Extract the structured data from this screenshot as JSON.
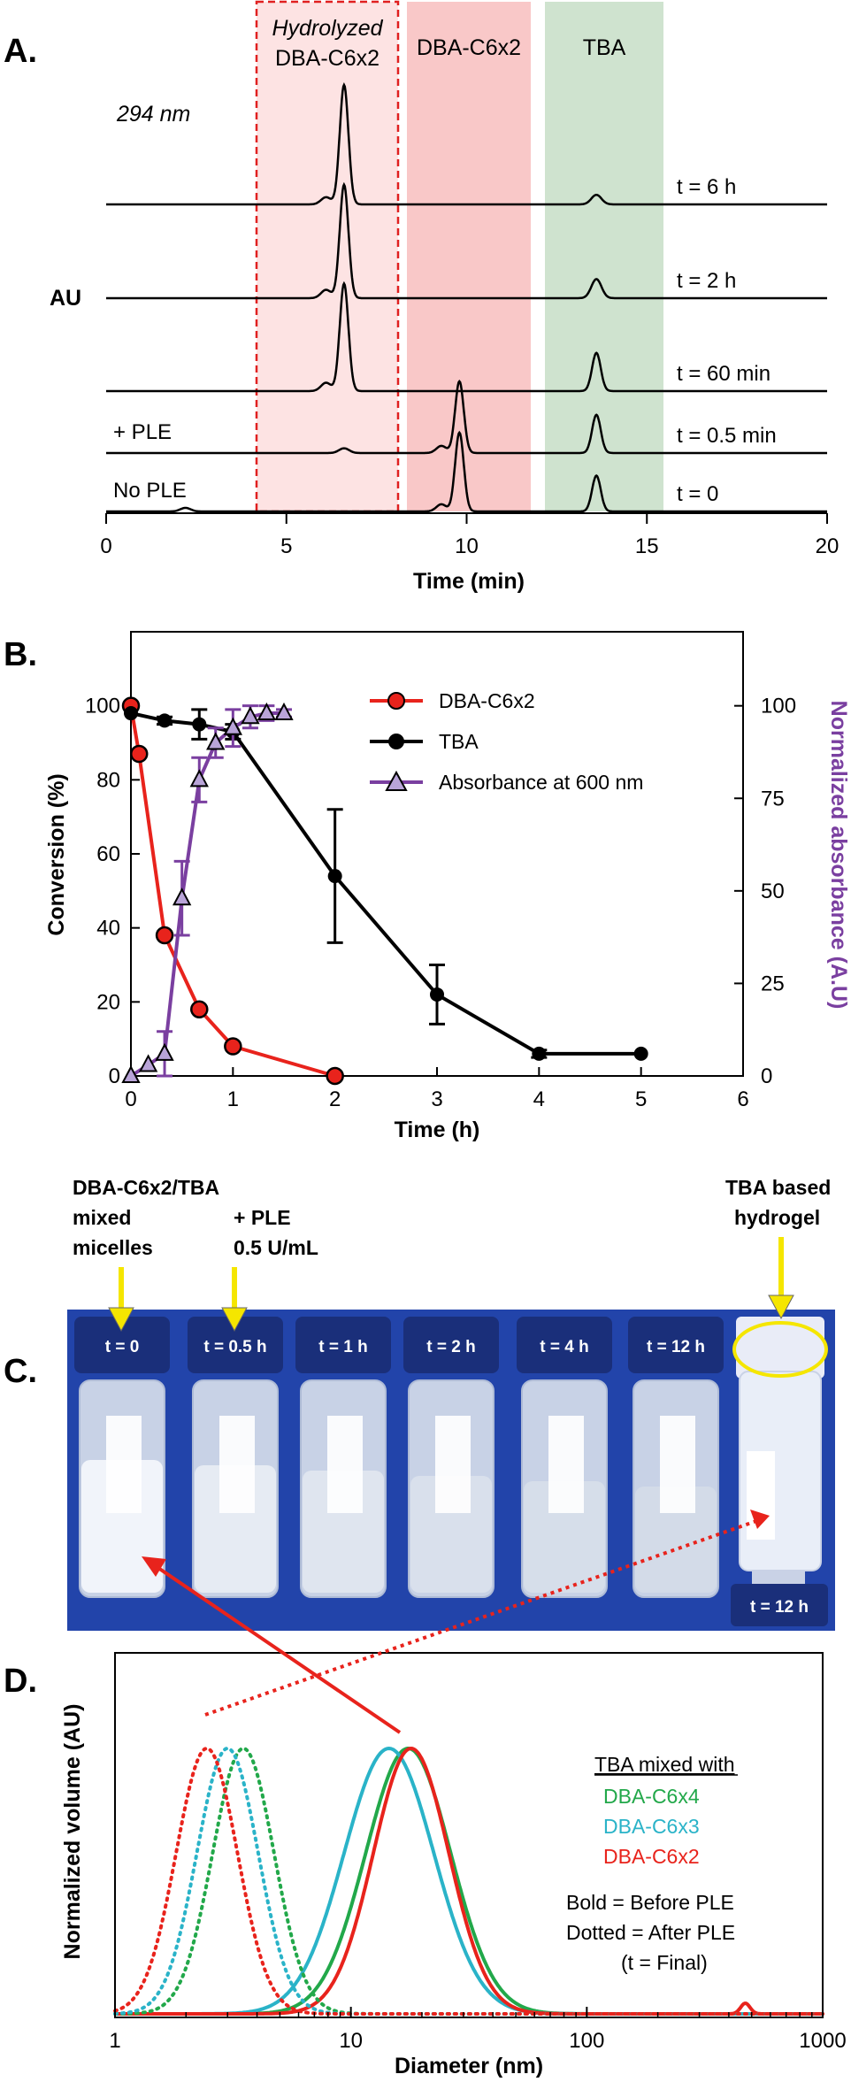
{
  "chart_data": [
    {
      "panel_label": "A.",
      "type": "line",
      "xlabel": "Time (min)",
      "ylabel": "AU",
      "xlim": [
        0,
        20
      ],
      "xticks": [
        0,
        5,
        10,
        15,
        20
      ],
      "wavelength_label": "294 nm",
      "regions": [
        {
          "label_line1": "Hydrolyzed",
          "label_line2": "DBA-C6x2",
          "x_range": [
            4.2,
            8.0
          ],
          "color": "#fde3e3",
          "border": "#e02020"
        },
        {
          "label": "DBA-C6x2",
          "x_range": [
            8.4,
            11.8
          ],
          "color": "#f9c8c8"
        },
        {
          "label": "TBA",
          "x_range": [
            12.2,
            15.5
          ],
          "color": "#cfe3cf"
        }
      ],
      "traces": [
        {
          "label": "t = 6 h",
          "side_label": "",
          "peaks": [
            {
              "x": 6.6,
              "h": 1.0
            },
            {
              "x": 6.1,
              "h": 0.06
            },
            {
              "x": 13.6,
              "h": 0.08
            }
          ]
        },
        {
          "label": "t = 2 h",
          "side_label": "",
          "peaks": [
            {
              "x": 6.6,
              "h": 0.95
            },
            {
              "x": 6.1,
              "h": 0.07
            },
            {
              "x": 13.6,
              "h": 0.16
            }
          ]
        },
        {
          "label": "t = 60 min",
          "side_label": "",
          "peaks": [
            {
              "x": 6.6,
              "h": 0.9
            },
            {
              "x": 6.1,
              "h": 0.07
            },
            {
              "x": 13.6,
              "h": 0.32
            }
          ]
        },
        {
          "label": "t = 0.5 min",
          "side_label": "+ PLE",
          "peaks": [
            {
              "x": 9.8,
              "h": 0.6
            },
            {
              "x": 9.3,
              "h": 0.06
            },
            {
              "x": 13.6,
              "h": 0.32
            },
            {
              "x": 6.6,
              "h": 0.04
            }
          ]
        },
        {
          "label": "t = 0",
          "side_label": "No PLE",
          "peaks": [
            {
              "x": 9.8,
              "h": 0.66
            },
            {
              "x": 9.3,
              "h": 0.06
            },
            {
              "x": 13.6,
              "h": 0.3
            },
            {
              "x": 2.2,
              "h": 0.03
            }
          ]
        }
      ]
    },
    {
      "panel_label": "B.",
      "type": "line",
      "xlabel": "Time (h)",
      "ylabel": "Conversion (%)",
      "y2label": "Normalized absorbance (A.U)",
      "xlim": [
        0,
        6
      ],
      "ylim": [
        0,
        120
      ],
      "y2lim": [
        0,
        120
      ],
      "xticks": [
        0,
        1,
        2,
        3,
        4,
        5,
        6
      ],
      "yticks": [
        0,
        20,
        40,
        60,
        80,
        100
      ],
      "y2ticks": [
        0,
        25,
        50,
        75,
        100
      ],
      "legend_position": "top-right",
      "series": [
        {
          "name": "DBA-C6x2",
          "color": "#e8231c",
          "marker": "circle",
          "x": [
            0,
            0.08,
            0.33,
            0.67,
            1,
            2
          ],
          "y": [
            100,
            87,
            38,
            18,
            8,
            0
          ],
          "err": [
            0,
            0,
            0,
            0,
            0,
            0
          ]
        },
        {
          "name": "TBA",
          "color": "#000000",
          "marker": "circle",
          "x": [
            0,
            0.33,
            0.67,
            1,
            2,
            3,
            4,
            5
          ],
          "y": [
            98,
            96,
            95,
            93,
            54,
            22,
            6,
            6
          ],
          "err": [
            0,
            1,
            4,
            2,
            18,
            8,
            1,
            0
          ]
        },
        {
          "name": "Absorbance at 600 nm",
          "color": "#7a3fa0",
          "marker": "triangle",
          "axis": "right",
          "x": [
            0,
            0.17,
            0.33,
            0.5,
            0.67,
            0.83,
            1,
            1.17,
            1.33,
            1.5
          ],
          "y": [
            0,
            3,
            6,
            48,
            80,
            90,
            94,
            97,
            98,
            98
          ],
          "err": [
            0,
            0,
            6,
            10,
            6,
            4,
            5,
            3,
            2,
            1
          ]
        }
      ]
    },
    {
      "panel_label": "D.",
      "type": "line",
      "xlabel": "Diameter (nm)",
      "ylabel": "Normalized volume (AU)",
      "xscale": "log",
      "xlim": [
        1,
        1000
      ],
      "xticks": [
        "1",
        "10",
        "100",
        "1000"
      ],
      "legend_title": "TBA mixed with",
      "notes": [
        "Bold = Before PLE",
        "Dotted = After PLE",
        "(t = Final)"
      ],
      "series": [
        {
          "name": "DBA-C6x4",
          "color": "#22a84a",
          "style": "solid",
          "center": 17.5,
          "width": 0.18
        },
        {
          "name": "DBA-C6x3",
          "color": "#2ab3c8",
          "style": "solid",
          "center": 14.5,
          "width": 0.19
        },
        {
          "name": "DBA-C6x2",
          "color": "#e8231c",
          "style": "solid",
          "center": 18.0,
          "width": 0.16
        },
        {
          "name": "DBA-C6x4",
          "color": "#22a84a",
          "style": "dotted",
          "center": 3.5,
          "width": 0.13
        },
        {
          "name": "DBA-C6x3",
          "color": "#2ab3c8",
          "style": "dotted",
          "center": 3.0,
          "width": 0.13
        },
        {
          "name": "DBA-C6x2",
          "color": "#e8231c",
          "style": "dotted",
          "center": 2.45,
          "width": 0.13
        }
      ]
    }
  ],
  "panel_c": {
    "panel_label": "C.",
    "header_left_1": "DBA-C6x2/TBA",
    "header_left_2": "mixed",
    "header_left_3": "micelles",
    "header_mid_1": "+ PLE",
    "header_mid_2": "0.5 U/mL",
    "header_right_1": "TBA based",
    "header_right_2": "hydrogel",
    "vials": [
      "t = 0",
      "t = 0.5 h",
      "t = 1 h",
      "t = 2 h",
      "t = 4 h",
      "t = 12 h"
    ],
    "inverted_label": "t = 12 h",
    "colors": {
      "background": "#2244aa",
      "cap": "#1a2f7a",
      "arrow": "#f5e600",
      "red_arrow": "#e8231c"
    }
  }
}
